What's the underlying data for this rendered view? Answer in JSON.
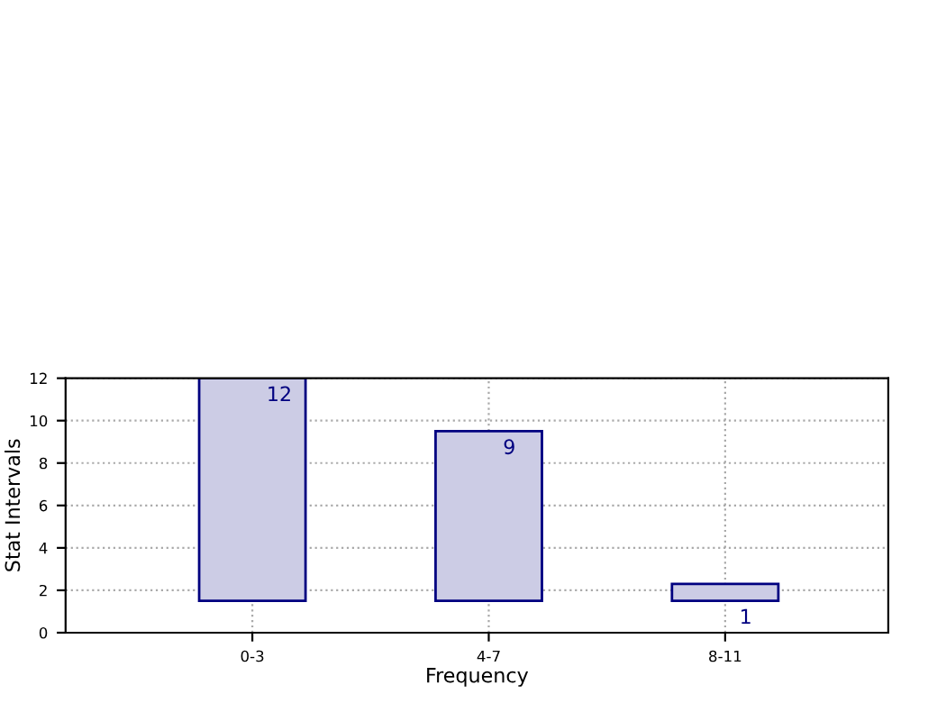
{
  "chart_data": {
    "type": "bar",
    "xlabel": "Frequency",
    "ylabel": "Stat Intervals",
    "categories": [
      "0-3",
      "4-7",
      "8-11"
    ],
    "values": [
      10.5,
      8.0,
      0.8
    ],
    "base": [
      1.5,
      1.5,
      1.5
    ],
    "value_labels": [
      "12",
      "9",
      "1"
    ],
    "color": "#ccccE5",
    "ylim": [
      0,
      12
    ],
    "yticks": [
      0,
      2,
      4,
      6,
      8,
      10,
      12
    ],
    "grid": true
  }
}
